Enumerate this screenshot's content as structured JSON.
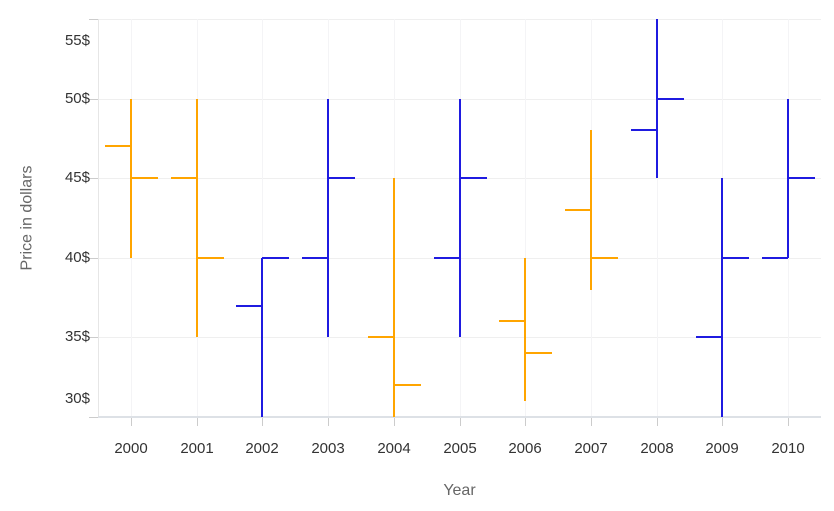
{
  "chart_data": {
    "type": "ohlc",
    "title": "",
    "xlabel": "Year",
    "ylabel": "Price in dollars",
    "categories": [
      "2000",
      "2001",
      "2002",
      "2003",
      "2004",
      "2005",
      "2006",
      "2007",
      "2008",
      "2009",
      "2010"
    ],
    "series": [
      {
        "name": "Price",
        "points": [
          {
            "year": "2000",
            "open": 47,
            "high": 50,
            "low": 40,
            "close": 45
          },
          {
            "year": "2001",
            "open": 45,
            "high": 50,
            "low": 35,
            "close": 40
          },
          {
            "year": "2002",
            "open": 37,
            "high": 40,
            "low": 30,
            "close": 40
          },
          {
            "year": "2003",
            "open": 40,
            "high": 50,
            "low": 35,
            "close": 45
          },
          {
            "year": "2004",
            "open": 35,
            "high": 45,
            "low": 30,
            "close": 32
          },
          {
            "year": "2005",
            "open": 40,
            "high": 50,
            "low": 35,
            "close": 45
          },
          {
            "year": "2006",
            "open": 36,
            "high": 40,
            "low": 31,
            "close": 34
          },
          {
            "year": "2007",
            "open": 43,
            "high": 48,
            "low": 38,
            "close": 40
          },
          {
            "year": "2008",
            "open": 48,
            "high": 55,
            "low": 45,
            "close": 50
          },
          {
            "year": "2009",
            "open": 35,
            "high": 45,
            "low": 30,
            "close": 40
          },
          {
            "year": "2010",
            "open": 40,
            "high": 50,
            "low": 40,
            "close": 45
          }
        ]
      }
    ],
    "y_ticks": [
      30,
      35,
      40,
      45,
      50,
      55
    ],
    "y_tick_suffix": "$",
    "ylim": [
      30,
      55
    ],
    "grid": true,
    "legend": "none",
    "colors": {
      "up": "#1f1be0",
      "down": "#ffa500"
    }
  }
}
